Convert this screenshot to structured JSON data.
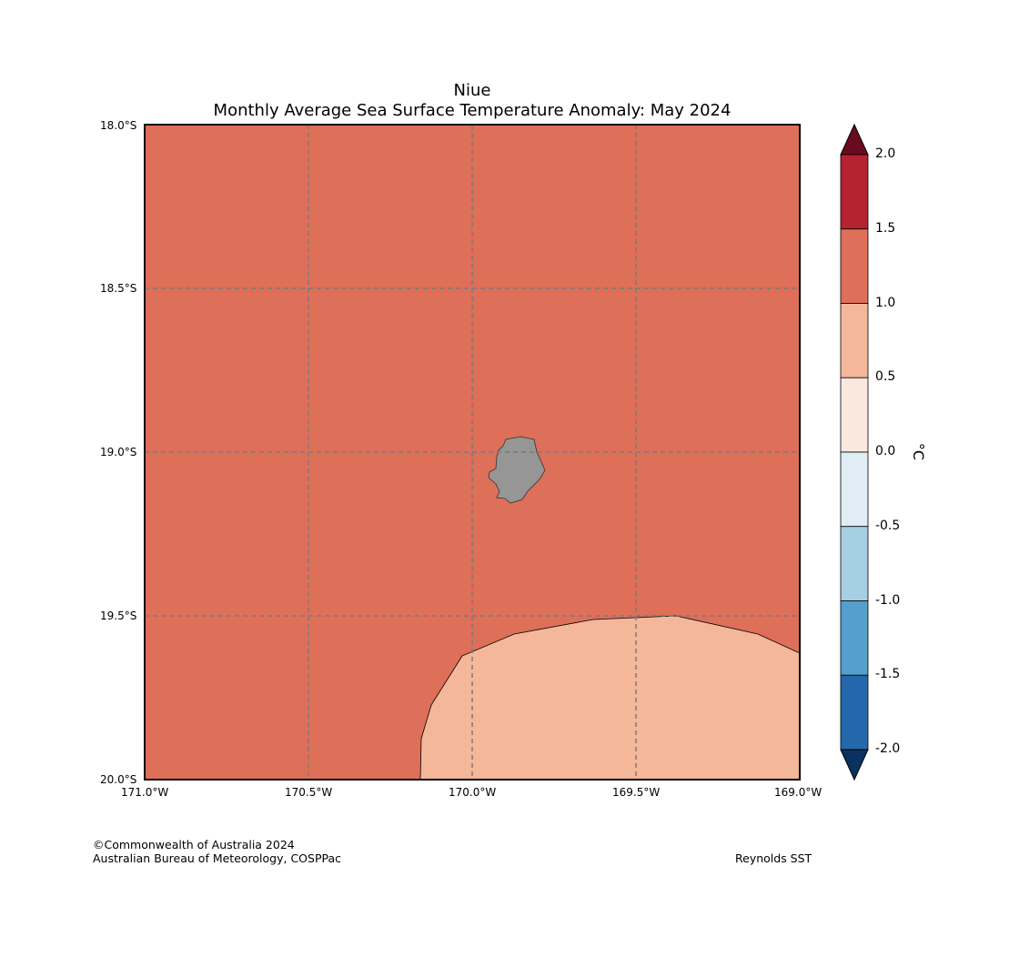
{
  "title": {
    "line1": "Niue",
    "line2": "Monthly Average Sea Surface Temperature Anomaly: May 2024"
  },
  "map": {
    "region": "Niue",
    "lat_labels": [
      "18.0°S",
      "18.5°S",
      "19.0°S",
      "19.5°S",
      "20.0°S"
    ],
    "lon_labels": [
      "171.0°W",
      "170.5°W",
      "170.0°W",
      "169.5°W",
      "169.0°W"
    ],
    "background_anomaly_class": "1.0 to 1.5",
    "southeast_anomaly_class": "0.5 to 1.0",
    "colors": {
      "ocean_main": "#de6f58",
      "ocean_southeast": "#f5b799",
      "land": "#969696",
      "grid": "#7a7a7a"
    }
  },
  "colorbar": {
    "unit": "°C",
    "tick_labels": [
      "2.0",
      "1.5",
      "1.0",
      "0.5",
      "0.0",
      "-0.5",
      "-1.0",
      "-1.5",
      "-2.0"
    ],
    "colors": [
      "#b52230",
      "#de6f58",
      "#f5b799",
      "#fae8df",
      "#e0edf4",
      "#a7cfe3",
      "#559fcc",
      "#2467ab"
    ],
    "over_color": "#6a0a20",
    "under_color": "#0a3260"
  },
  "footer": {
    "copyright": "©Commonwealth of Australia 2024",
    "org": "Australian Bureau of Meteorology, COSPPac",
    "source": "Reynolds SST"
  }
}
